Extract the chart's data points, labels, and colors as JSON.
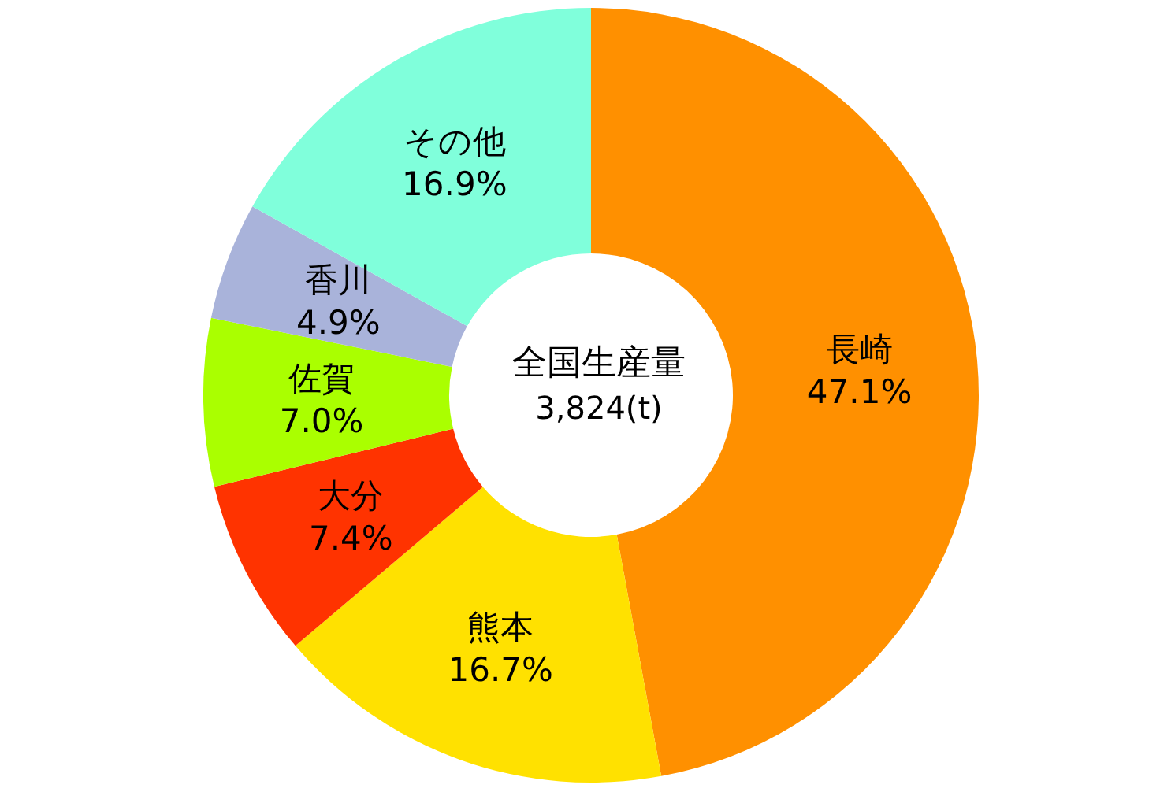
{
  "chart_data": {
    "type": "donut",
    "title": "全国生産量",
    "subtitle": "3,824(t)",
    "categories": [
      "長崎",
      "熊本",
      "大分",
      "佐賀",
      "香川",
      "その他"
    ],
    "values": [
      47.1,
      16.7,
      7.4,
      7.0,
      4.9,
      16.9
    ],
    "value_labels": [
      "47.1%",
      "16.7%",
      "7.4%",
      "7.0%",
      "4.9%",
      "16.9%"
    ],
    "colors": [
      "#ff9000",
      "#ffe100",
      "#ff3300",
      "#aaff00",
      "#a9b3da",
      "#80ffdb"
    ],
    "legend": false
  }
}
